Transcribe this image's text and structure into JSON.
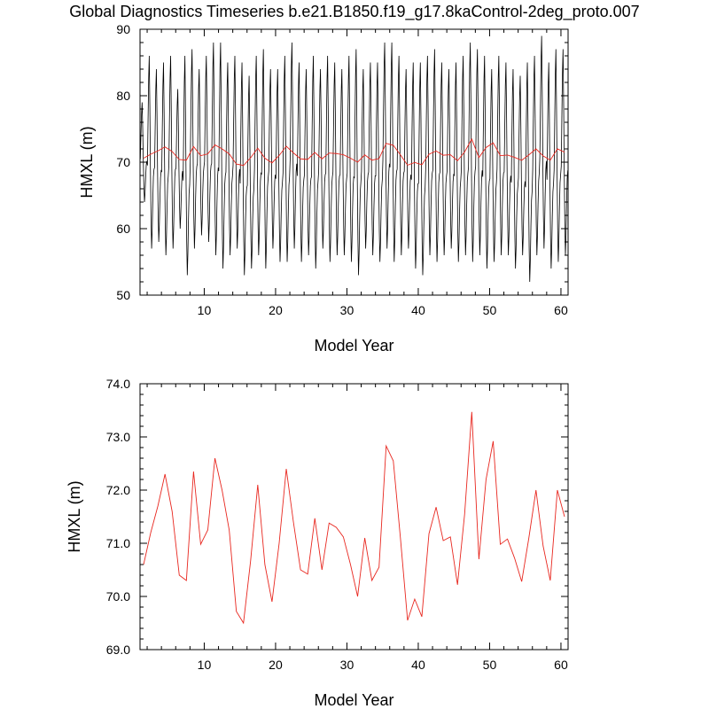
{
  "title": "Global Diagnostics Timeseries b.e21.B1850.f19_g17.8kaControl-2deg_proto.007",
  "colors": {
    "monthly": "#000000",
    "annual": "#e8271f",
    "axis": "#000000"
  },
  "chart_data": [
    {
      "type": "line",
      "xlabel": "Model Year",
      "ylabel": "HMXL (m)",
      "xlim": [
        1,
        61
      ],
      "ylim": [
        50,
        90
      ],
      "xticks": [
        10,
        20,
        30,
        40,
        50,
        60
      ],
      "yticks": [
        50,
        60,
        70,
        80,
        90
      ],
      "grid": false,
      "series": [
        {
          "style": "black-line",
          "resolution": "monthly",
          "seasonal_cycle": [
            69.0,
            75.0,
            80.5,
            83.5,
            77.0,
            68.5,
            62.0,
            58.0,
            60.5,
            64.5,
            67.5,
            68.5
          ],
          "peak_by_year": [
            79,
            86,
            84,
            85,
            86,
            81,
            86,
            87,
            84,
            86,
            88,
            88,
            85,
            86,
            85,
            83,
            86,
            87,
            84,
            84,
            86,
            88,
            85,
            84,
            86,
            84,
            86,
            85,
            84,
            86,
            87,
            84,
            85,
            85,
            88,
            88,
            86,
            84,
            85,
            85,
            86,
            87,
            85,
            84,
            85,
            86,
            88,
            87,
            86,
            84,
            86,
            85,
            84,
            83,
            85,
            86,
            89,
            85,
            87,
            87
          ],
          "trough_by_year": [
            64,
            57,
            58,
            56,
            57,
            60,
            53,
            57,
            59,
            58,
            56,
            54,
            56,
            57,
            53,
            54,
            56,
            54,
            57,
            55,
            55,
            57,
            55,
            56,
            54,
            57,
            55,
            56,
            56,
            55,
            53,
            57,
            56,
            55,
            57,
            55,
            56,
            57,
            54,
            53,
            56,
            55,
            56,
            57,
            55,
            56,
            55,
            56,
            54,
            55,
            56,
            56,
            54,
            56,
            52,
            56,
            57,
            54,
            55,
            56
          ]
        },
        {
          "style": "red-line",
          "resolution": "annual",
          "x": [
            1.5,
            2.5,
            3.5,
            4.5,
            5.5,
            6.5,
            7.5,
            8.5,
            9.5,
            10.5,
            11.5,
            12.5,
            13.5,
            14.5,
            15.5,
            16.5,
            17.5,
            18.5,
            19.5,
            20.5,
            21.5,
            22.5,
            23.5,
            24.5,
            25.5,
            26.5,
            27.5,
            28.5,
            29.5,
            30.5,
            31.5,
            32.5,
            33.5,
            34.5,
            35.5,
            36.5,
            37.5,
            38.5,
            39.5,
            40.5,
            41.5,
            42.5,
            43.5,
            44.5,
            45.5,
            46.5,
            47.5,
            48.5,
            49.5,
            50.5,
            51.5,
            52.5,
            53.5,
            54.5,
            55.5,
            56.5,
            57.5,
            58.5,
            59.5,
            60.5
          ],
          "values": [
            70.6,
            71.2,
            71.7,
            72.3,
            71.6,
            70.4,
            70.3,
            72.35,
            70.98,
            71.25,
            72.6,
            72.0,
            71.25,
            69.72,
            69.5,
            70.67,
            72.1,
            70.6,
            69.9,
            71.0,
            72.4,
            71.4,
            70.5,
            70.42,
            71.47,
            70.5,
            71.38,
            71.3,
            71.12,
            70.6,
            70.0,
            71.1,
            70.3,
            70.55,
            72.83,
            72.55,
            71.1,
            69.55,
            69.95,
            69.62,
            71.18,
            71.68,
            71.05,
            71.12,
            70.22,
            71.55,
            73.47,
            70.7,
            72.2,
            72.92,
            70.98,
            71.08,
            70.72,
            70.28,
            71.1,
            72.0,
            70.95,
            70.3,
            72.0,
            71.5
          ]
        }
      ]
    },
    {
      "type": "line",
      "xlabel": "Model Year",
      "ylabel": "HMXL (m)",
      "xlim": [
        1,
        61
      ],
      "ylim": [
        69.0,
        74.0
      ],
      "xticks": [
        10,
        20,
        30,
        40,
        50,
        60
      ],
      "yticks": [
        "69.0",
        "70.0",
        "71.0",
        "72.0",
        "73.0",
        "74.0"
      ],
      "grid": false,
      "series": [
        {
          "style": "red-line",
          "resolution": "annual",
          "x": [
            1.5,
            2.5,
            3.5,
            4.5,
            5.5,
            6.5,
            7.5,
            8.5,
            9.5,
            10.5,
            11.5,
            12.5,
            13.5,
            14.5,
            15.5,
            16.5,
            17.5,
            18.5,
            19.5,
            20.5,
            21.5,
            22.5,
            23.5,
            24.5,
            25.5,
            26.5,
            27.5,
            28.5,
            29.5,
            30.5,
            31.5,
            32.5,
            33.5,
            34.5,
            35.5,
            36.5,
            37.5,
            38.5,
            39.5,
            40.5,
            41.5,
            42.5,
            43.5,
            44.5,
            45.5,
            46.5,
            47.5,
            48.5,
            49.5,
            50.5,
            51.5,
            52.5,
            53.5,
            54.5,
            55.5,
            56.5,
            57.5,
            58.5,
            59.5,
            60.5
          ],
          "values": [
            70.6,
            71.2,
            71.7,
            72.3,
            71.6,
            70.4,
            70.3,
            72.35,
            70.98,
            71.25,
            72.6,
            72.0,
            71.25,
            69.72,
            69.5,
            70.67,
            72.1,
            70.6,
            69.9,
            71.0,
            72.4,
            71.4,
            70.5,
            70.42,
            71.47,
            70.5,
            71.38,
            71.3,
            71.12,
            70.6,
            70.0,
            71.1,
            70.3,
            70.55,
            72.83,
            72.55,
            71.1,
            69.55,
            69.95,
            69.62,
            71.18,
            71.68,
            71.05,
            71.12,
            70.22,
            71.55,
            73.47,
            70.7,
            72.2,
            72.92,
            70.98,
            71.08,
            70.72,
            70.28,
            71.1,
            72.0,
            70.95,
            70.3,
            72.0,
            71.5
          ]
        }
      ]
    }
  ]
}
